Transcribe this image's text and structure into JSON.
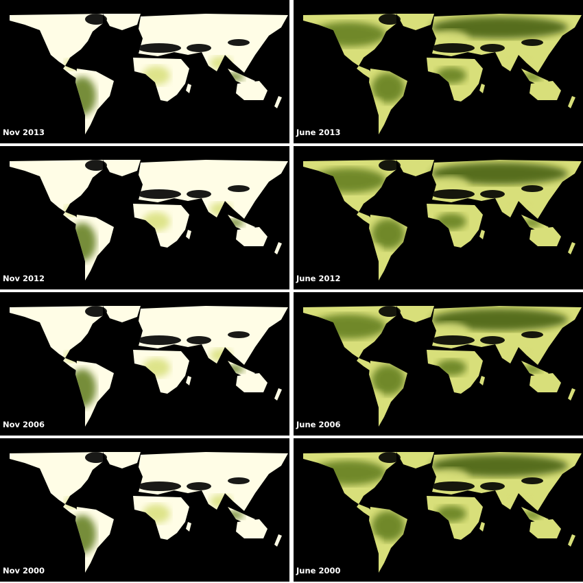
{
  "panels": [
    {
      "label": "Nov 2013",
      "month": "nov"
    },
    {
      "label": "June 2013",
      "month": "june"
    },
    {
      "label": "Nov 2012",
      "month": "nov"
    },
    {
      "label": "June 2012",
      "month": "june"
    },
    {
      "label": "Nov 2006",
      "month": "nov"
    },
    {
      "label": "June 2006",
      "month": "june"
    },
    {
      "label": "Nov 2000",
      "month": "nov"
    },
    {
      "label": "June 2000",
      "month": "june"
    }
  ],
  "colors": {
    "ocean": "#000000",
    "low_vegetation": "#fffde6",
    "mid_vegetation": "#d8df7a",
    "high_vegetation": "#5f7a1a",
    "dense_vegetation": "#3f5a10"
  }
}
